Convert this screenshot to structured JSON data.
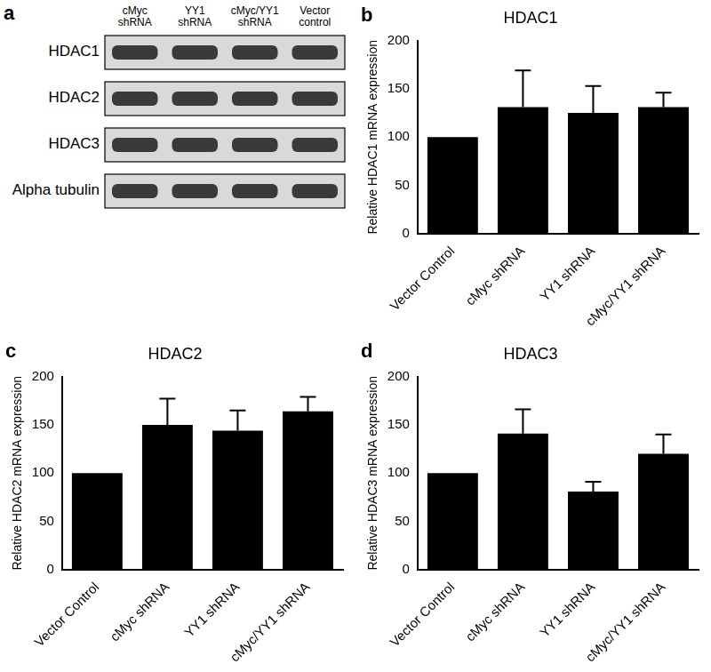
{
  "blot": {
    "panel_label": "a",
    "lanes": [
      "cMyc shRNA",
      "YY1 shRNA",
      "cMyc/YY1 shRNA",
      "Vector control"
    ],
    "rows": [
      "HDAC1",
      "HDAC2",
      "HDAC3",
      "Alpha tubulin"
    ]
  },
  "chart_data": [
    {
      "type": "bar",
      "panel_label": "b",
      "title": "HDAC1",
      "ylabel": "Relative HDAC1 mRNA expression",
      "categories": [
        "Vector Control",
        "cMyc shRNA",
        "YY1 shRNA",
        "cMyc/YY1 shRNA"
      ],
      "values": [
        100,
        131,
        125,
        131
      ],
      "errors": [
        null,
        38,
        28,
        15
      ],
      "color": "#000000",
      "ylim": [
        0,
        200
      ],
      "yticks": [
        0,
        50,
        100,
        150,
        200
      ],
      "grid": false
    },
    {
      "type": "bar",
      "panel_label": "c",
      "title": "HDAC2",
      "ylabel": "Relative HDAC2 mRNA expression",
      "categories": [
        "Vector Control",
        "cMyc shRNA",
        "YY1 shRNA",
        "cMyc/YY1 shRNA"
      ],
      "values": [
        100,
        150,
        144,
        164
      ],
      "errors": [
        null,
        27,
        21,
        15
      ],
      "color": "#000000",
      "ylim": [
        0,
        200
      ],
      "yticks": [
        0,
        50,
        100,
        150,
        200
      ],
      "grid": false
    },
    {
      "type": "bar",
      "panel_label": "d",
      "title": "HDAC3",
      "ylabel": "Relative HDAC3 mRNA expression",
      "categories": [
        "Vector Control",
        "cMyc shRNA",
        "YY1 shRNA",
        "cMyc/YY1 shRNA"
      ],
      "values": [
        100,
        141,
        81,
        120
      ],
      "errors": [
        null,
        25,
        10,
        20
      ],
      "color": "#000000",
      "ylim": [
        0,
        200
      ],
      "yticks": [
        0,
        50,
        100,
        150,
        200
      ],
      "grid": false
    }
  ]
}
